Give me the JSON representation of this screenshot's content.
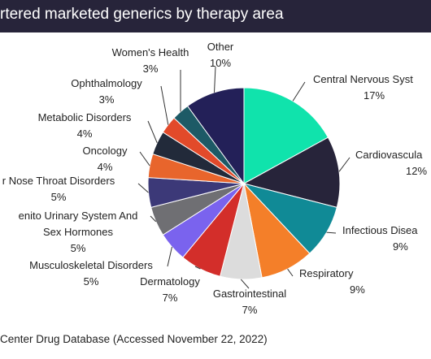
{
  "header": {
    "title": "rtered marketed generics by therapy area"
  },
  "footer": {
    "source": "Center Drug Database (Accessed November 22, 2022)"
  },
  "chart_data": {
    "type": "pie",
    "title": "rtered marketed generics by therapy area",
    "slices": [
      {
        "name": "Central Nervous Syst",
        "value": 17,
        "value_label": "17%",
        "color": "#10e3ac"
      },
      {
        "name": "Cardiovascula",
        "value": 12,
        "value_label": "12%",
        "color": "#27243a"
      },
      {
        "name": "Infectious Disea",
        "value": 9,
        "value_label": "9%",
        "color": "#108a96"
      },
      {
        "name": "Respiratory",
        "value": 9,
        "value_label": "9%",
        "color": "#f47f29"
      },
      {
        "name": "Gastrointestinal",
        "value": 7,
        "value_label": "7%",
        "color": "#dcdcdc"
      },
      {
        "name": "Dermatology",
        "value": 7,
        "value_label": "7%",
        "color": "#d32e2a"
      },
      {
        "name": "Musculoskeletal Disorders",
        "value": 5,
        "value_label": "5%",
        "color": "#7a63ee"
      },
      {
        "name": "enito Urinary System And\nSex Hormones",
        "value": 5,
        "value_label": "5%",
        "color": "#6f6f73"
      },
      {
        "name": "r Nose Throat Disorders",
        "value": 5,
        "value_label": "5%",
        "color": "#3c3978"
      },
      {
        "name": "Oncology",
        "value": 4,
        "value_label": "4%",
        "color": "#e8652c"
      },
      {
        "name": "Metabolic Disorders",
        "value": 4,
        "value_label": "4%",
        "color": "#222a3a"
      },
      {
        "name": "Ophthalmology",
        "value": 3,
        "value_label": "3%",
        "color": "#e24a2a"
      },
      {
        "name": "Women's Health",
        "value": 3,
        "value_label": "3%",
        "color": "#1d5a66"
      },
      {
        "name": "Other",
        "value": 10,
        "value_label": "10%",
        "color": "#232058"
      }
    ]
  }
}
